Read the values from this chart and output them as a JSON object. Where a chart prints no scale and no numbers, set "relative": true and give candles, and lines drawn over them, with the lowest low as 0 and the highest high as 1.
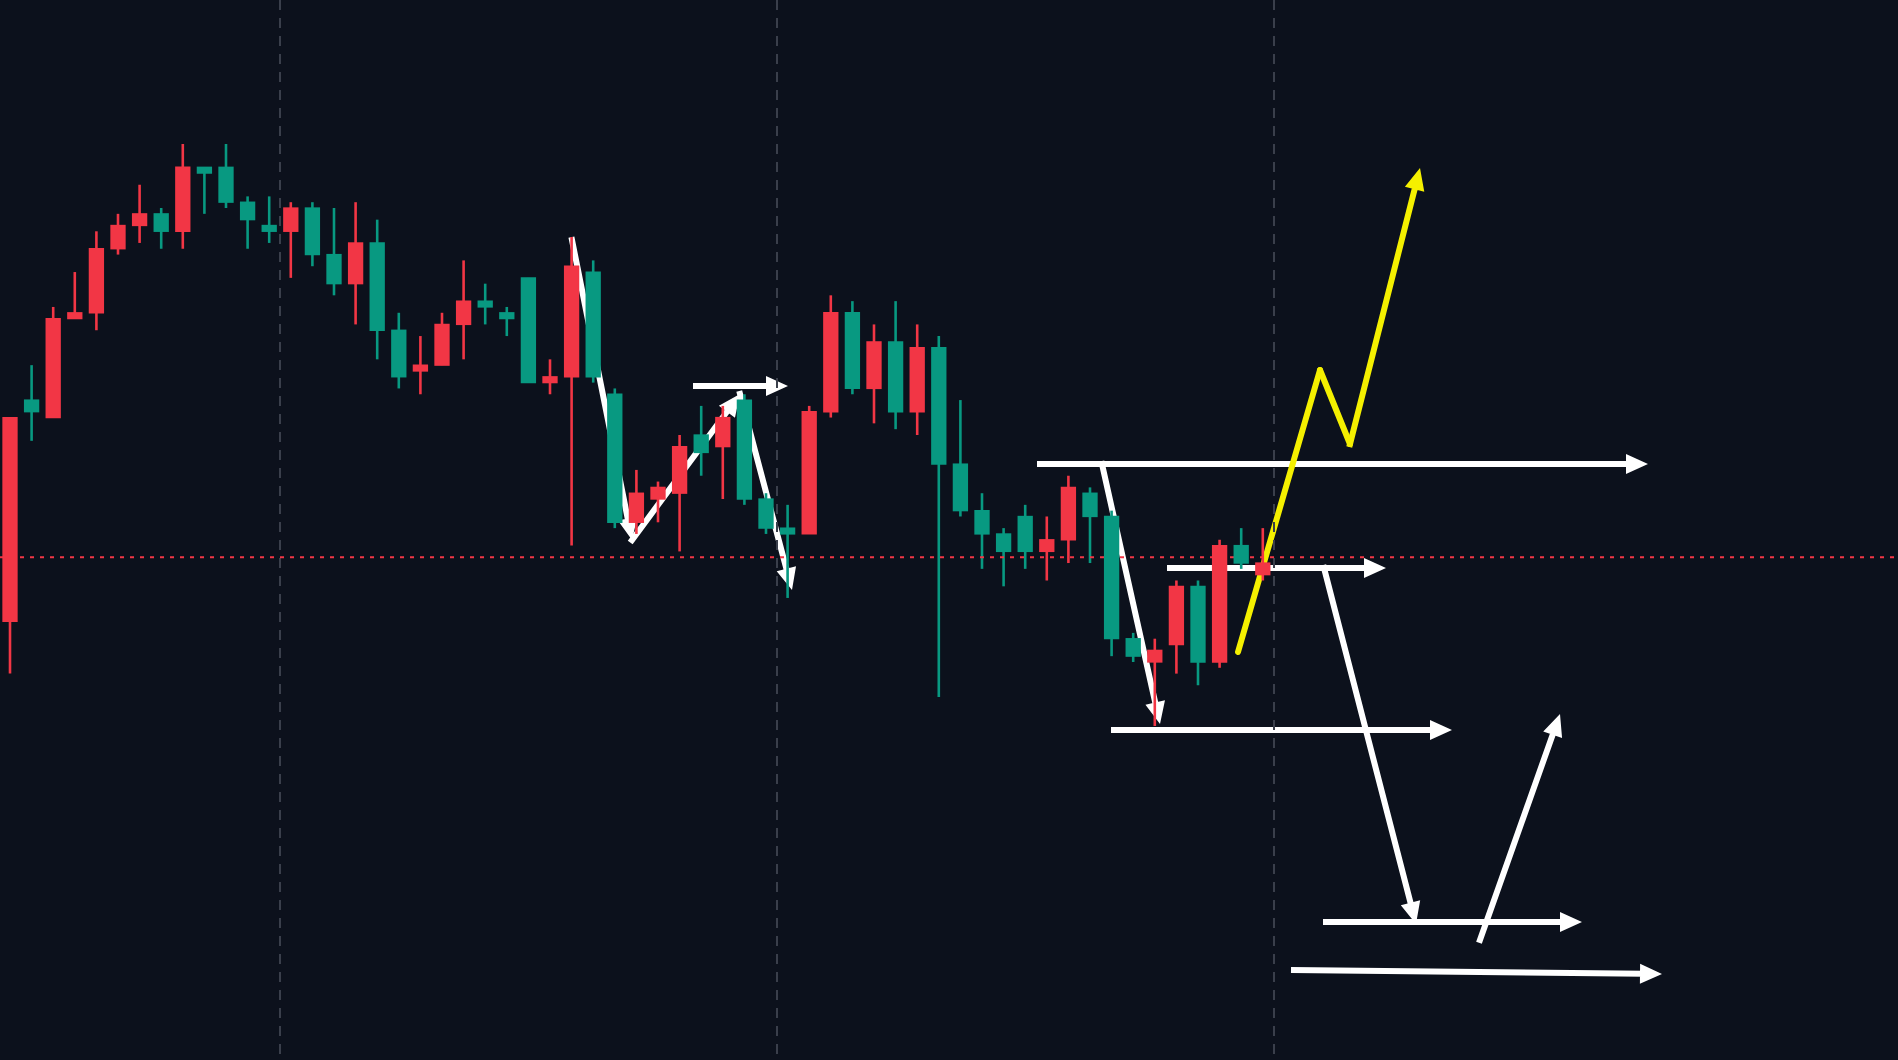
{
  "chart_data": {
    "type": "candlestick",
    "relative": true,
    "grid": "x",
    "tick_labels": false,
    "categories": [
      null,
      null,
      null,
      null,
      null,
      null,
      null,
      null,
      null,
      null,
      null,
      null,
      null,
      null,
      null,
      null,
      null,
      null,
      null,
      null,
      null,
      null,
      null,
      null,
      null,
      null,
      null,
      null,
      null,
      null,
      null,
      null,
      null,
      null,
      null,
      null,
      null,
      null,
      null,
      null,
      null,
      null,
      null,
      null,
      null,
      null,
      null,
      null,
      null,
      null,
      null,
      null,
      null,
      null,
      null,
      null,
      null,
      null,
      null
    ],
    "ohlc": [
      [
        0.18,
        0.53,
        0.09,
        0.53
      ],
      [
        0.56,
        0.62,
        0.49,
        0.54
      ],
      [
        0.53,
        0.72,
        0.53,
        0.7
      ],
      [
        0.7,
        0.78,
        0.7,
        0.71
      ],
      [
        0.71,
        0.85,
        0.68,
        0.82
      ],
      [
        0.82,
        0.88,
        0.81,
        0.86
      ],
      [
        0.86,
        0.93,
        0.83,
        0.88
      ],
      [
        0.88,
        0.89,
        0.82,
        0.85
      ],
      [
        0.85,
        1.0,
        0.82,
        0.96
      ],
      [
        0.96,
        0.96,
        0.88,
        0.95
      ],
      [
        0.96,
        1.0,
        0.89,
        0.9
      ],
      [
        0.9,
        0.91,
        0.82,
        0.87
      ],
      [
        0.86,
        0.91,
        0.83,
        0.85
      ],
      [
        0.85,
        0.9,
        0.77,
        0.89
      ],
      [
        0.89,
        0.9,
        0.79,
        0.81
      ],
      [
        0.81,
        0.89,
        0.74,
        0.76
      ],
      [
        0.76,
        0.9,
        0.69,
        0.83
      ],
      [
        0.83,
        0.87,
        0.63,
        0.68
      ],
      [
        0.68,
        0.71,
        0.58,
        0.6
      ],
      [
        0.61,
        0.67,
        0.57,
        0.62
      ],
      [
        0.62,
        0.71,
        0.62,
        0.69
      ],
      [
        0.69,
        0.8,
        0.63,
        0.73
      ],
      [
        0.73,
        0.76,
        0.69,
        0.72
      ],
      [
        0.71,
        0.72,
        0.67,
        0.7
      ],
      [
        0.77,
        0.77,
        0.59,
        0.59
      ],
      [
        0.59,
        0.63,
        0.57,
        0.6
      ],
      [
        0.6,
        0.84,
        0.31,
        0.79
      ],
      [
        0.78,
        0.8,
        0.59,
        0.6
      ],
      [
        0.57,
        0.58,
        0.34,
        0.35
      ],
      [
        0.35,
        0.44,
        0.33,
        0.4
      ],
      [
        0.39,
        0.42,
        0.35,
        0.41
      ],
      [
        0.4,
        0.5,
        0.3,
        0.48
      ],
      [
        0.5,
        0.55,
        0.43,
        0.47
      ],
      [
        0.48,
        0.55,
        0.39,
        0.53
      ],
      [
        0.56,
        0.57,
        0.38,
        0.39
      ],
      [
        0.39,
        0.4,
        0.33,
        0.34
      ],
      [
        0.34,
        0.38,
        0.22,
        0.33
      ],
      [
        0.33,
        0.55,
        0.33,
        0.54
      ],
      [
        0.54,
        0.74,
        0.53,
        0.71
      ],
      [
        0.71,
        0.73,
        0.57,
        0.58
      ],
      [
        0.58,
        0.69,
        0.52,
        0.66
      ],
      [
        0.66,
        0.73,
        0.51,
        0.54
      ],
      [
        0.54,
        0.69,
        0.5,
        0.65
      ],
      [
        0.65,
        0.67,
        0.05,
        0.45
      ],
      [
        0.45,
        0.56,
        0.36,
        0.37
      ],
      [
        0.37,
        0.4,
        0.27,
        0.33
      ],
      [
        0.33,
        0.34,
        0.24,
        0.3
      ],
      [
        0.36,
        0.38,
        0.27,
        0.3
      ],
      [
        0.3,
        0.36,
        0.25,
        0.32
      ],
      [
        0.32,
        0.43,
        0.28,
        0.41
      ],
      [
        0.4,
        0.41,
        0.28,
        0.36
      ],
      [
        0.36,
        0.37,
        0.12,
        0.15
      ],
      [
        0.15,
        0.16,
        0.11,
        0.12
      ],
      [
        0.11,
        0.15,
        0.0,
        0.13
      ],
      [
        0.14,
        0.25,
        0.09,
        0.24
      ],
      [
        0.24,
        0.25,
        0.07,
        0.11
      ],
      [
        0.11,
        0.32,
        0.1,
        0.31
      ],
      [
        0.31,
        0.34,
        0.27,
        0.28
      ],
      [
        0.26,
        0.34,
        0.25,
        0.28
      ]
    ],
    "colors": [
      "#f23645",
      "#089981",
      "#f23645",
      "#f23645",
      "#f23645",
      "#f23645",
      "#f23645",
      "#089981",
      "#f23645",
      "#089981",
      "#089981",
      "#089981",
      "#089981",
      "#f23645",
      "#089981",
      "#089981",
      "#f23645",
      "#089981",
      "#089981",
      "#f23645",
      "#f23645",
      "#f23645",
      "#089981",
      "#089981",
      "#089981",
      "#f23645",
      "#f23645",
      "#089981",
      "#089981",
      "#f23645",
      "#f23645",
      "#f23645",
      "#089981",
      "#f23645",
      "#089981",
      "#089981",
      "#089981",
      "#f23645",
      "#f23645",
      "#089981",
      "#f23645",
      "#089981",
      "#f23645",
      "#089981",
      "#089981",
      "#089981",
      "#089981",
      "#089981",
      "#f23645",
      "#f23645",
      "#089981",
      "#089981",
      "#089981",
      "#f23645",
      "#f23645",
      "#089981",
      "#f23645",
      "#089981",
      "#f23645"
    ],
    "ref_lines": [
      {
        "axis": "y",
        "value": 0.29,
        "color": "#f23645",
        "line_style": "dotted"
      }
    ]
  }
}
